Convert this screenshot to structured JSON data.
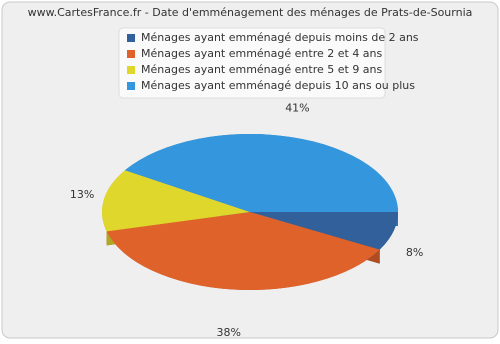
{
  "chart_data": {
    "type": "pie",
    "title": "www.CartesFrance.fr - Date d'emménagement des ménages de Prats-de-Sournia",
    "categories": [
      "Ménages ayant emménagé depuis moins de 2 ans",
      "Ménages ayant emménagé entre 2 et 4 ans",
      "Ménages ayant emménagé entre 5 et 9 ans",
      "Ménages ayant emménagé depuis 10 ans ou plus"
    ],
    "values": [
      8,
      38,
      13,
      41
    ],
    "value_labels": [
      "8%",
      "38%",
      "13%",
      "41%"
    ],
    "colors": [
      "#31609a",
      "#e0622b",
      "#e0d72c",
      "#3497de"
    ]
  }
}
